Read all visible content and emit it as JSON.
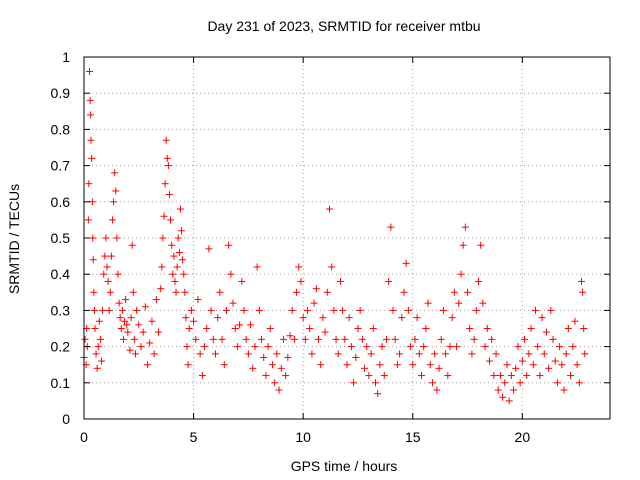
{
  "chart_data": {
    "type": "scatter",
    "title": "Day 231 of 2023, SRMTID for receiver mtbu",
    "xlabel": "GPS time / hours",
    "ylabel": "SRMTID / TECUs",
    "xlim": [
      0,
      24
    ],
    "ylim": [
      0,
      1
    ],
    "xticks": [
      0,
      5,
      10,
      15,
      20
    ],
    "yticks": [
      0,
      0.1,
      0.2,
      0.3,
      0.4,
      0.5,
      0.6,
      0.7,
      0.8,
      0.9,
      1
    ],
    "xtick_labels": [
      "0",
      "5",
      "10",
      "15",
      "20"
    ],
    "ytick_labels": [
      "0",
      "0.1",
      "0.2",
      "0.3",
      "0.4",
      "0.5",
      "0.6",
      "0.7",
      "0.8",
      "0.9",
      "1"
    ],
    "grid": true,
    "marker": "+",
    "series": [
      {
        "name": "SRMTID",
        "color": "#ff0000",
        "points": [
          [
            0.0,
            0.17
          ],
          [
            0.05,
            0.22
          ],
          [
            0.1,
            0.15
          ],
          [
            0.12,
            0.25
          ],
          [
            0.15,
            0.2
          ],
          [
            0.2,
            0.55
          ],
          [
            0.22,
            0.65
          ],
          [
            0.25,
            0.96
          ],
          [
            0.28,
            0.88
          ],
          [
            0.3,
            0.84
          ],
          [
            0.32,
            0.77
          ],
          [
            0.35,
            0.72
          ],
          [
            0.38,
            0.6
          ],
          [
            0.4,
            0.5
          ],
          [
            0.42,
            0.44
          ],
          [
            0.45,
            0.35
          ],
          [
            0.48,
            0.3
          ],
          [
            0.5,
            0.25
          ],
          [
            0.55,
            0.18
          ],
          [
            0.6,
            0.14
          ],
          [
            0.65,
            0.2
          ],
          [
            0.7,
            0.27
          ],
          [
            0.75,
            0.22
          ],
          [
            0.8,
            0.16
          ],
          [
            0.85,
            0.3
          ],
          [
            0.9,
            0.4
          ],
          [
            0.95,
            0.45
          ],
          [
            1.0,
            0.5
          ],
          [
            1.05,
            0.42
          ],
          [
            1.1,
            0.38
          ],
          [
            1.15,
            0.3
          ],
          [
            1.2,
            0.35
          ],
          [
            1.25,
            0.45
          ],
          [
            1.3,
            0.55
          ],
          [
            1.35,
            0.6
          ],
          [
            1.4,
            0.68
          ],
          [
            1.45,
            0.63
          ],
          [
            1.5,
            0.5
          ],
          [
            1.55,
            0.4
          ],
          [
            1.6,
            0.32
          ],
          [
            1.65,
            0.28
          ],
          [
            1.7,
            0.25
          ],
          [
            1.75,
            0.3
          ],
          [
            1.8,
            0.22
          ],
          [
            1.85,
            0.27
          ],
          [
            1.9,
            0.33
          ],
          [
            1.95,
            0.26
          ],
          [
            2.0,
            0.24
          ],
          [
            2.1,
            0.19
          ],
          [
            2.15,
            0.28
          ],
          [
            2.2,
            0.48
          ],
          [
            2.25,
            0.35
          ],
          [
            2.3,
            0.22
          ],
          [
            2.35,
            0.18
          ],
          [
            2.4,
            0.3
          ],
          [
            2.5,
            0.26
          ],
          [
            2.6,
            0.2
          ],
          [
            2.7,
            0.24
          ],
          [
            2.8,
            0.31
          ],
          [
            2.9,
            0.15
          ],
          [
            3.0,
            0.21
          ],
          [
            3.1,
            0.27
          ],
          [
            3.2,
            0.18
          ],
          [
            3.3,
            0.33
          ],
          [
            3.4,
            0.24
          ],
          [
            3.5,
            0.36
          ],
          [
            3.55,
            0.42
          ],
          [
            3.6,
            0.5
          ],
          [
            3.65,
            0.56
          ],
          [
            3.7,
            0.65
          ],
          [
            3.75,
            0.77
          ],
          [
            3.8,
            0.72
          ],
          [
            3.85,
            0.7
          ],
          [
            3.9,
            0.62
          ],
          [
            3.95,
            0.55
          ],
          [
            4.0,
            0.48
          ],
          [
            4.05,
            0.4
          ],
          [
            4.1,
            0.45
          ],
          [
            4.15,
            0.38
          ],
          [
            4.2,
            0.35
          ],
          [
            4.25,
            0.42
          ],
          [
            4.3,
            0.5
          ],
          [
            4.35,
            0.46
          ],
          [
            4.4,
            0.58
          ],
          [
            4.45,
            0.52
          ],
          [
            4.5,
            0.44
          ],
          [
            4.55,
            0.4
          ],
          [
            4.6,
            0.35
          ],
          [
            4.65,
            0.28
          ],
          [
            4.7,
            0.2
          ],
          [
            4.75,
            0.15
          ],
          [
            4.8,
            0.25
          ],
          [
            4.9,
            0.3
          ],
          [
            5.0,
            0.27
          ],
          [
            5.1,
            0.22
          ],
          [
            5.2,
            0.33
          ],
          [
            5.3,
            0.18
          ],
          [
            5.4,
            0.12
          ],
          [
            5.5,
            0.2
          ],
          [
            5.6,
            0.25
          ],
          [
            5.7,
            0.47
          ],
          [
            5.8,
            0.3
          ],
          [
            5.9,
            0.22
          ],
          [
            6.0,
            0.18
          ],
          [
            6.1,
            0.28
          ],
          [
            6.2,
            0.35
          ],
          [
            6.3,
            0.22
          ],
          [
            6.4,
            0.15
          ],
          [
            6.5,
            0.3
          ],
          [
            6.6,
            0.48
          ],
          [
            6.7,
            0.4
          ],
          [
            6.8,
            0.32
          ],
          [
            6.9,
            0.25
          ],
          [
            7.0,
            0.2
          ],
          [
            7.1,
            0.26
          ],
          [
            7.2,
            0.38
          ],
          [
            7.3,
            0.3
          ],
          [
            7.4,
            0.22
          ],
          [
            7.5,
            0.18
          ],
          [
            7.6,
            0.26
          ],
          [
            7.7,
            0.14
          ],
          [
            7.8,
            0.2
          ],
          [
            7.9,
            0.42
          ],
          [
            8.0,
            0.3
          ],
          [
            8.1,
            0.22
          ],
          [
            8.2,
            0.17
          ],
          [
            8.3,
            0.12
          ],
          [
            8.4,
            0.2
          ],
          [
            8.5,
            0.25
          ],
          [
            8.6,
            0.15
          ],
          [
            8.7,
            0.1
          ],
          [
            8.8,
            0.18
          ],
          [
            8.9,
            0.08
          ],
          [
            9.0,
            0.14
          ],
          [
            9.1,
            0.22
          ],
          [
            9.2,
            0.12
          ],
          [
            9.3,
            0.17
          ],
          [
            9.4,
            0.23
          ],
          [
            9.5,
            0.3
          ],
          [
            9.6,
            0.22
          ],
          [
            9.7,
            0.35
          ],
          [
            9.8,
            0.42
          ],
          [
            9.9,
            0.38
          ],
          [
            10.0,
            0.28
          ],
          [
            10.1,
            0.22
          ],
          [
            10.2,
            0.3
          ],
          [
            10.3,
            0.25
          ],
          [
            10.4,
            0.18
          ],
          [
            10.5,
            0.32
          ],
          [
            10.6,
            0.36
          ],
          [
            10.7,
            0.22
          ],
          [
            10.8,
            0.15
          ],
          [
            10.9,
            0.28
          ],
          [
            11.0,
            0.24
          ],
          [
            11.1,
            0.35
          ],
          [
            11.2,
            0.58
          ],
          [
            11.3,
            0.42
          ],
          [
            11.4,
            0.3
          ],
          [
            11.5,
            0.22
          ],
          [
            11.6,
            0.18
          ],
          [
            11.7,
            0.38
          ],
          [
            11.8,
            0.3
          ],
          [
            11.9,
            0.22
          ],
          [
            12.0,
            0.15
          ],
          [
            12.1,
            0.28
          ],
          [
            12.2,
            0.2
          ],
          [
            12.3,
            0.1
          ],
          [
            12.4,
            0.17
          ],
          [
            12.5,
            0.25
          ],
          [
            12.6,
            0.3
          ],
          [
            12.7,
            0.22
          ],
          [
            12.8,
            0.14
          ],
          [
            12.9,
            0.2
          ],
          [
            13.0,
            0.12
          ],
          [
            13.1,
            0.18
          ],
          [
            13.2,
            0.25
          ],
          [
            13.3,
            0.1
          ],
          [
            13.4,
            0.07
          ],
          [
            13.5,
            0.15
          ],
          [
            13.6,
            0.2
          ],
          [
            13.7,
            0.12
          ],
          [
            13.8,
            0.22
          ],
          [
            13.9,
            0.38
          ],
          [
            14.0,
            0.53
          ],
          [
            14.1,
            0.3
          ],
          [
            14.2,
            0.22
          ],
          [
            14.3,
            0.15
          ],
          [
            14.4,
            0.18
          ],
          [
            14.5,
            0.28
          ],
          [
            14.6,
            0.35
          ],
          [
            14.7,
            0.43
          ],
          [
            14.8,
            0.3
          ],
          [
            14.9,
            0.2
          ],
          [
            15.0,
            0.15
          ],
          [
            15.1,
            0.22
          ],
          [
            15.2,
            0.28
          ],
          [
            15.3,
            0.18
          ],
          [
            15.4,
            0.12
          ],
          [
            15.5,
            0.2
          ],
          [
            15.6,
            0.25
          ],
          [
            15.7,
            0.32
          ],
          [
            15.8,
            0.15
          ],
          [
            15.9,
            0.1
          ],
          [
            16.0,
            0.18
          ],
          [
            16.1,
            0.08
          ],
          [
            16.2,
            0.14
          ],
          [
            16.3,
            0.22
          ],
          [
            16.4,
            0.3
          ],
          [
            16.5,
            0.18
          ],
          [
            16.6,
            0.12
          ],
          [
            16.7,
            0.2
          ],
          [
            16.8,
            0.28
          ],
          [
            16.9,
            0.35
          ],
          [
            17.0,
            0.2
          ],
          [
            17.1,
            0.32
          ],
          [
            17.2,
            0.4
          ],
          [
            17.3,
            0.48
          ],
          [
            17.4,
            0.53
          ],
          [
            17.5,
            0.35
          ],
          [
            17.6,
            0.25
          ],
          [
            17.7,
            0.18
          ],
          [
            17.8,
            0.22
          ],
          [
            17.9,
            0.3
          ],
          [
            18.0,
            0.38
          ],
          [
            18.1,
            0.48
          ],
          [
            18.2,
            0.32
          ],
          [
            18.3,
            0.2
          ],
          [
            18.4,
            0.25
          ],
          [
            18.5,
            0.16
          ],
          [
            18.6,
            0.22
          ],
          [
            18.7,
            0.12
          ],
          [
            18.8,
            0.18
          ],
          [
            18.9,
            0.08
          ],
          [
            19.0,
            0.12
          ],
          [
            19.1,
            0.06
          ],
          [
            19.2,
            0.1
          ],
          [
            19.3,
            0.15
          ],
          [
            19.4,
            0.05
          ],
          [
            19.5,
            0.12
          ],
          [
            19.6,
            0.08
          ],
          [
            19.7,
            0.14
          ],
          [
            19.8,
            0.2
          ],
          [
            19.9,
            0.1
          ],
          [
            20.0,
            0.16
          ],
          [
            20.1,
            0.22
          ],
          [
            20.2,
            0.12
          ],
          [
            20.3,
            0.18
          ],
          [
            20.4,
            0.25
          ],
          [
            20.5,
            0.15
          ],
          [
            20.6,
            0.3
          ],
          [
            20.7,
            0.2
          ],
          [
            20.8,
            0.12
          ],
          [
            20.9,
            0.28
          ],
          [
            21.0,
            0.18
          ],
          [
            21.1,
            0.24
          ],
          [
            21.2,
            0.14
          ],
          [
            21.3,
            0.3
          ],
          [
            21.4,
            0.22
          ],
          [
            21.5,
            0.16
          ],
          [
            21.6,
            0.1
          ],
          [
            21.7,
            0.2
          ],
          [
            21.8,
            0.15
          ],
          [
            21.9,
            0.08
          ],
          [
            22.0,
            0.18
          ],
          [
            22.1,
            0.25
          ],
          [
            22.2,
            0.12
          ],
          [
            22.3,
            0.2
          ],
          [
            22.4,
            0.27
          ],
          [
            22.5,
            0.15
          ],
          [
            22.6,
            0.1
          ],
          [
            22.7,
            0.38
          ],
          [
            22.75,
            0.35
          ],
          [
            22.8,
            0.25
          ],
          [
            22.85,
            0.18
          ]
        ]
      }
    ]
  }
}
